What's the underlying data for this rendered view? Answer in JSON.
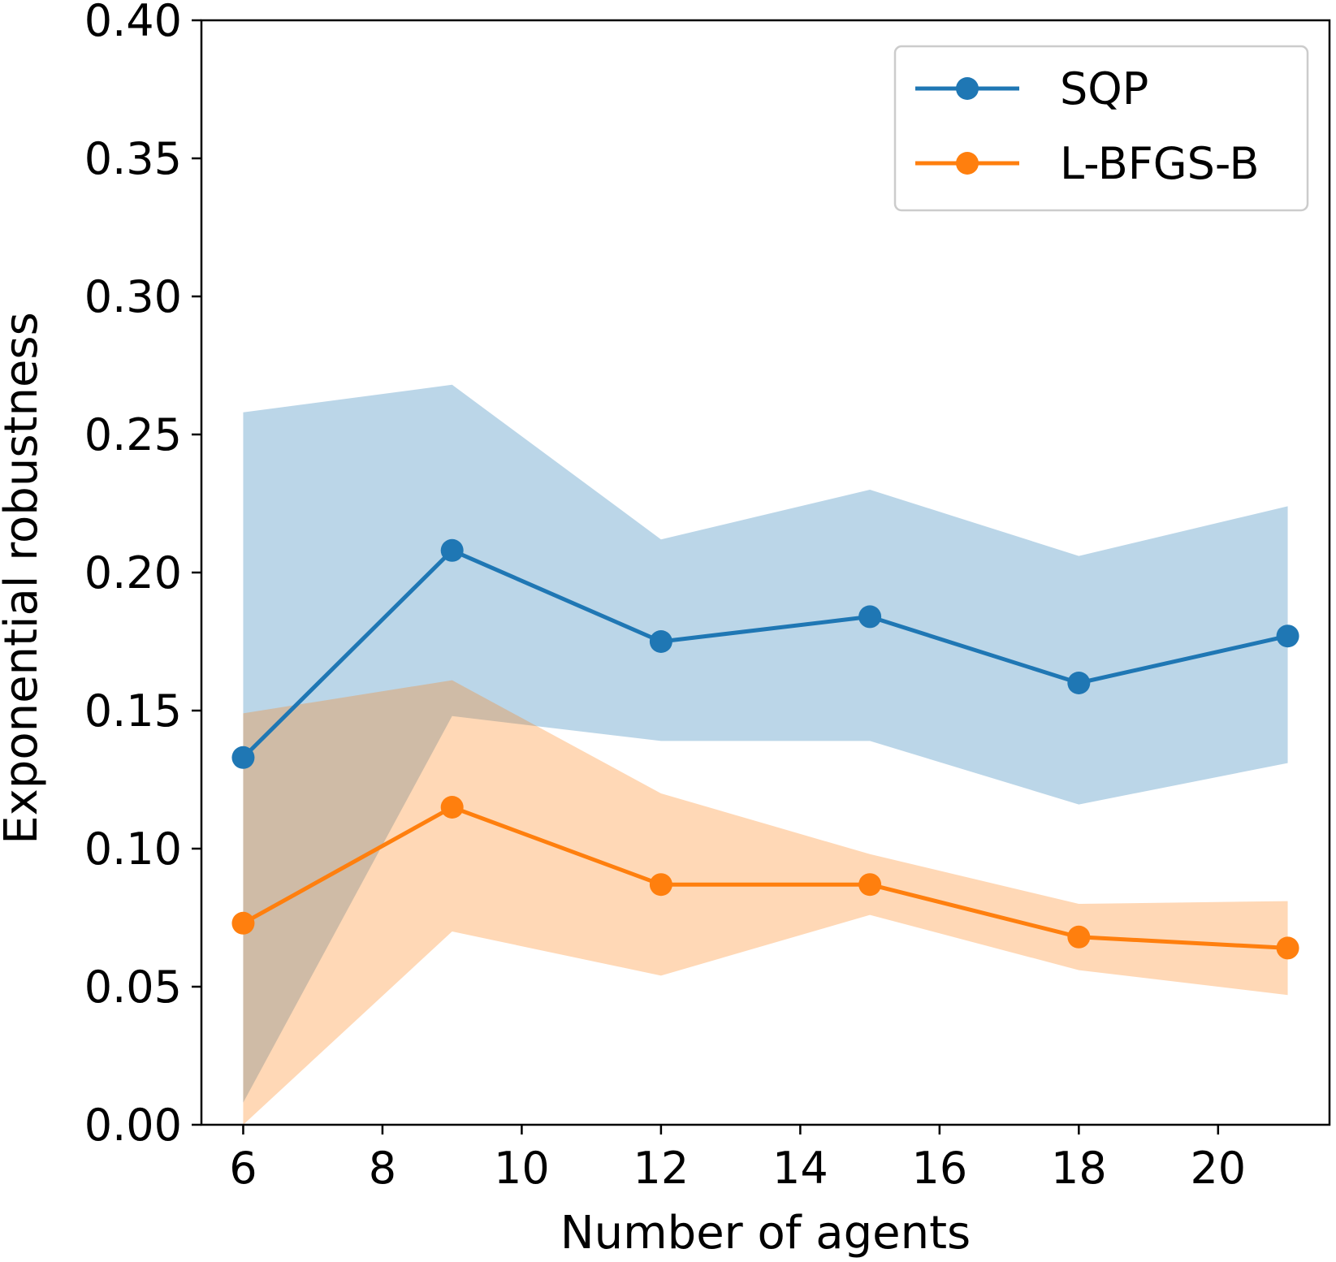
{
  "chart_data": {
    "type": "line",
    "title": "",
    "xlabel": "Number of agents",
    "ylabel": "Exponential robustness",
    "xlim": [
      5.4,
      21.6
    ],
    "ylim": [
      0.0,
      0.4
    ],
    "xticks": [
      6,
      8,
      10,
      12,
      14,
      16,
      18,
      20
    ],
    "xtick_labels": [
      "6",
      "8",
      "10",
      "12",
      "14",
      "16",
      "18",
      "20"
    ],
    "yticks": [
      0.0,
      0.05,
      0.1,
      0.15,
      0.2,
      0.25,
      0.3,
      0.35,
      0.4
    ],
    "ytick_labels": [
      "0.00",
      "0.05",
      "0.10",
      "0.15",
      "0.20",
      "0.25",
      "0.30",
      "0.35",
      "0.40"
    ],
    "grid": false,
    "legend_position": "top-right",
    "x": [
      6,
      9,
      12,
      15,
      18,
      21
    ],
    "series": [
      {
        "name": "SQP",
        "color": "#1f77b4",
        "band_color": "#1f77b4",
        "values": [
          0.133,
          0.208,
          0.175,
          0.184,
          0.16,
          0.177
        ],
        "lower": [
          0.008,
          0.148,
          0.139,
          0.139,
          0.116,
          0.131
        ],
        "upper": [
          0.258,
          0.268,
          0.212,
          0.23,
          0.206,
          0.224
        ]
      },
      {
        "name": "L-BFGS-B",
        "color": "#ff7f0e",
        "band_color": "#ff7f0e",
        "values": [
          0.073,
          0.115,
          0.087,
          0.087,
          0.068,
          0.064
        ],
        "lower": [
          0.0,
          0.07,
          0.054,
          0.076,
          0.056,
          0.047
        ],
        "upper": [
          0.149,
          0.161,
          0.12,
          0.098,
          0.08,
          0.081
        ]
      }
    ]
  }
}
